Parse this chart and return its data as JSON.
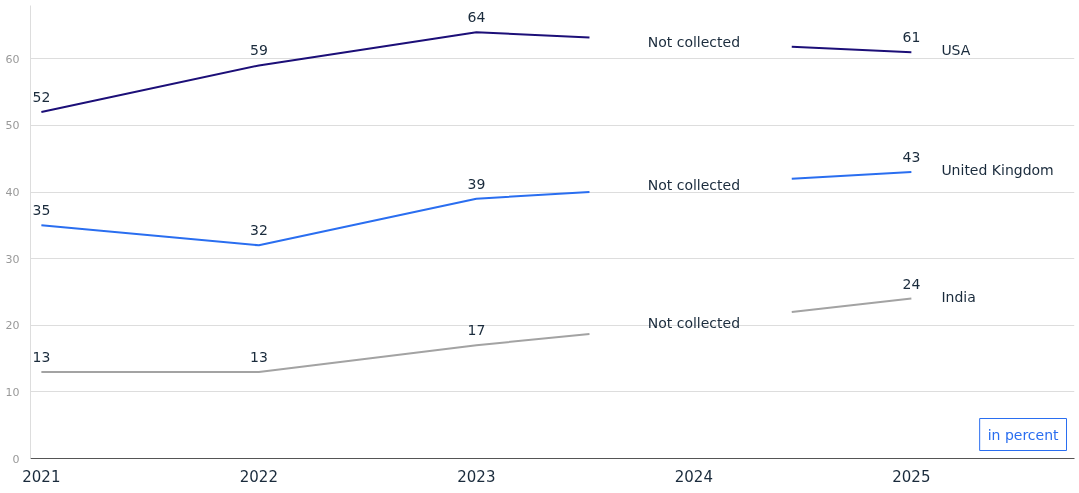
{
  "chart_data": {
    "type": "line",
    "series": [
      {
        "name": "USA",
        "color": "#1c0f78",
        "x": [
          2021,
          2022,
          2023,
          2023.52,
          2024,
          2024.45,
          2025
        ],
        "values": [
          52,
          59,
          64,
          63.2,
          null,
          61.8,
          61
        ],
        "value_labels": [
          "52",
          "59",
          "64",
          null,
          null,
          null,
          "61"
        ]
      },
      {
        "name": "United Kingdom",
        "color": "#2a6ef0",
        "x": [
          2021,
          2022,
          2023,
          2023.52,
          2024,
          2024.45,
          2025
        ],
        "values": [
          35,
          32,
          39,
          40,
          null,
          42,
          43
        ],
        "value_labels": [
          "35",
          "32",
          "39",
          null,
          null,
          null,
          "43"
        ]
      },
      {
        "name": "India",
        "color": "#a3a3a3",
        "x": [
          2021,
          2022,
          2023,
          2023.52,
          2024,
          2024.45,
          2025
        ],
        "values": [
          13,
          13,
          17,
          18.7,
          null,
          22,
          24
        ],
        "value_labels": [
          "13",
          "13",
          "17",
          null,
          null,
          null,
          "24"
        ]
      }
    ],
    "ylim": [
      0,
      68
    ],
    "yticks": [
      0,
      10,
      20,
      30,
      40,
      50,
      60
    ],
    "xlim": [
      2020.95,
      2025.75
    ],
    "xticks": [
      2021,
      2022,
      2023,
      2024,
      2025
    ],
    "grid": "y",
    "annotations": [
      "Not collected",
      "Not collected",
      "Not collected",
      "in percent"
    ]
  }
}
